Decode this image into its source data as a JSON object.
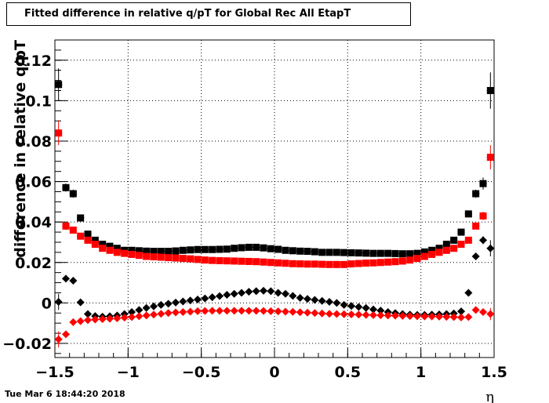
{
  "chart_data": {
    "type": "scatter",
    "title": "Fitted difference in relative q/pT  for Global Rec All EtapT",
    "xlabel": "η",
    "ylabel": "difference in relative q/pT",
    "xlim": [
      -1.5,
      1.5
    ],
    "ylim": [
      -0.027,
      0.13
    ],
    "grid": true,
    "x_ticks": [
      -1.5,
      -1,
      -0.5,
      0,
      0.5,
      1,
      1.5
    ],
    "x_tick_labels": [
      "−1.5",
      "−1",
      "−0.5",
      "0",
      "0.5",
      "1",
      "1.5"
    ],
    "y_ticks": [
      -0.02,
      0,
      0.02,
      0.04,
      0.06,
      0.08,
      0.1,
      0.12
    ],
    "y_tick_labels": [
      "−0.02",
      "0",
      "0.02",
      "0.04",
      "0.06",
      "0.08",
      "0.1",
      "0.12"
    ],
    "x": [
      -1.475,
      -1.425,
      -1.375,
      -1.325,
      -1.275,
      -1.225,
      -1.175,
      -1.125,
      -1.075,
      -1.025,
      -0.975,
      -0.925,
      -0.875,
      -0.825,
      -0.775,
      -0.725,
      -0.675,
      -0.625,
      -0.575,
      -0.525,
      -0.475,
      -0.425,
      -0.375,
      -0.325,
      -0.275,
      -0.225,
      -0.175,
      -0.125,
      -0.075,
      -0.025,
      0.025,
      0.075,
      0.125,
      0.175,
      0.225,
      0.275,
      0.325,
      0.375,
      0.425,
      0.475,
      0.525,
      0.575,
      0.625,
      0.675,
      0.725,
      0.775,
      0.825,
      0.875,
      0.925,
      0.975,
      1.025,
      1.075,
      1.125,
      1.175,
      1.225,
      1.275,
      1.325,
      1.375,
      1.425,
      1.475
    ],
    "series": [
      {
        "marker": "square",
        "color": "#000000",
        "values": [
          0.108,
          0.057,
          0.054,
          0.042,
          0.034,
          0.031,
          0.029,
          0.028,
          0.027,
          0.026,
          0.026,
          0.0258,
          0.0256,
          0.0255,
          0.0255,
          0.0255,
          0.0257,
          0.026,
          0.0262,
          0.0264,
          0.0264,
          0.0264,
          0.0265,
          0.0266,
          0.027,
          0.0273,
          0.0275,
          0.0275,
          0.0272,
          0.0268,
          0.0265,
          0.026,
          0.0258,
          0.0256,
          0.0255,
          0.0253,
          0.025,
          0.025,
          0.025,
          0.0249,
          0.0248,
          0.0247,
          0.0246,
          0.0245,
          0.0245,
          0.0245,
          0.0244,
          0.0243,
          0.0243,
          0.0245,
          0.0252,
          0.026,
          0.027,
          0.029,
          0.031,
          0.035,
          0.044,
          0.054,
          0.059,
          0.105
        ],
        "errors": [
          0.008,
          0.002,
          0.002,
          0.0015,
          0.001,
          0.001,
          0.001,
          0.001,
          0.001,
          0.001,
          0.001,
          0.001,
          0.001,
          0.001,
          0.001,
          0.001,
          0.001,
          0.001,
          0.001,
          0.001,
          0.001,
          0.001,
          0.001,
          0.001,
          0.001,
          0.001,
          0.001,
          0.001,
          0.001,
          0.001,
          0.001,
          0.001,
          0.001,
          0.001,
          0.001,
          0.001,
          0.001,
          0.001,
          0.001,
          0.001,
          0.001,
          0.001,
          0.001,
          0.001,
          0.001,
          0.001,
          0.001,
          0.001,
          0.001,
          0.001,
          0.001,
          0.001,
          0.001,
          0.001,
          0.001,
          0.001,
          0.0015,
          0.002,
          0.003,
          0.009
        ]
      },
      {
        "marker": "square",
        "color": "#ff0000",
        "values": [
          0.084,
          0.038,
          0.036,
          0.033,
          0.031,
          0.029,
          0.027,
          0.026,
          0.025,
          0.0245,
          0.024,
          0.0235,
          0.023,
          0.0228,
          0.0226,
          0.0224,
          0.0222,
          0.022,
          0.0218,
          0.0215,
          0.0212,
          0.021,
          0.0209,
          0.0208,
          0.0207,
          0.0206,
          0.0205,
          0.0204,
          0.0202,
          0.02,
          0.0198,
          0.0196,
          0.0194,
          0.0193,
          0.0192,
          0.0192,
          0.0191,
          0.019,
          0.019,
          0.019,
          0.0193,
          0.0195,
          0.0197,
          0.0198,
          0.02,
          0.0202,
          0.0204,
          0.0207,
          0.0212,
          0.022,
          0.023,
          0.024,
          0.025,
          0.026,
          0.027,
          0.029,
          0.031,
          0.038,
          0.043,
          0.072
        ],
        "errors": [
          0.006,
          0.002,
          0.0015,
          0.001,
          0.001,
          0.001,
          0.001,
          0.001,
          0.001,
          0.001,
          0.001,
          0.001,
          0.001,
          0.001,
          0.001,
          0.001,
          0.001,
          0.001,
          0.001,
          0.001,
          0.001,
          0.001,
          0.001,
          0.001,
          0.001,
          0.001,
          0.001,
          0.001,
          0.001,
          0.001,
          0.001,
          0.001,
          0.001,
          0.001,
          0.001,
          0.001,
          0.001,
          0.001,
          0.001,
          0.001,
          0.001,
          0.001,
          0.001,
          0.001,
          0.001,
          0.001,
          0.001,
          0.001,
          0.001,
          0.001,
          0.001,
          0.001,
          0.001,
          0.001,
          0.001,
          0.001,
          0.001,
          0.0015,
          0.002,
          0.006
        ]
      },
      {
        "marker": "diamond",
        "color": "#000000",
        "values": [
          0.0005,
          0.012,
          0.011,
          0.0003,
          -0.0055,
          -0.0065,
          -0.0068,
          -0.0066,
          -0.0062,
          -0.0055,
          -0.0045,
          -0.0035,
          -0.0025,
          -0.0017,
          -0.001,
          -0.0004,
          0.0002,
          0.0007,
          0.0012,
          0.0017,
          0.0022,
          0.0028,
          0.0034,
          0.004,
          0.0045,
          0.005,
          0.0055,
          0.0058,
          0.006,
          0.0058,
          0.005,
          0.0045,
          0.0035,
          0.0025,
          0.002,
          0.0015,
          0.001,
          0.0005,
          0,
          -0.001,
          -0.0015,
          -0.002,
          -0.0025,
          -0.0032,
          -0.0038,
          -0.0045,
          -0.005,
          -0.0055,
          -0.0058,
          -0.0059,
          -0.0059,
          -0.0058,
          -0.0057,
          -0.0055,
          -0.0052,
          -0.0042,
          0.005,
          0.023,
          0.031,
          0.027
        ],
        "errors": [
          0.004,
          0.001,
          0.001,
          0.001,
          0.0008,
          0.0008,
          0.0008,
          0.0008,
          0.0008,
          0.0008,
          0.0008,
          0.0008,
          0.0008,
          0.0008,
          0.0008,
          0.0008,
          0.0008,
          0.0008,
          0.0008,
          0.0008,
          0.0008,
          0.0008,
          0.0008,
          0.0008,
          0.0008,
          0.0008,
          0.0008,
          0.0008,
          0.0008,
          0.0008,
          0.0008,
          0.0008,
          0.0008,
          0.0008,
          0.0008,
          0.0008,
          0.0008,
          0.0008,
          0.0008,
          0.0008,
          0.0008,
          0.0008,
          0.0008,
          0.0008,
          0.0008,
          0.0008,
          0.0008,
          0.0008,
          0.0008,
          0.0008,
          0.0008,
          0.0008,
          0.0008,
          0.0008,
          0.0008,
          0.0008,
          0.001,
          0.0015,
          0.002,
          0.004
        ]
      },
      {
        "marker": "diamond",
        "color": "#ff0000",
        "values": [
          -0.018,
          -0.0155,
          -0.0095,
          -0.009,
          -0.0085,
          -0.0082,
          -0.008,
          -0.0078,
          -0.0076,
          -0.0073,
          -0.007,
          -0.0066,
          -0.0062,
          -0.0058,
          -0.0054,
          -0.005,
          -0.0047,
          -0.0045,
          -0.0043,
          -0.0041,
          -0.004,
          -0.0039,
          -0.0039,
          -0.0039,
          -0.0039,
          -0.0039,
          -0.0039,
          -0.0039,
          -0.004,
          -0.0041,
          -0.0042,
          -0.0043,
          -0.0044,
          -0.0046,
          -0.0048,
          -0.005,
          -0.0052,
          -0.0054,
          -0.0055,
          -0.0056,
          -0.0057,
          -0.0058,
          -0.0059,
          -0.006,
          -0.0061,
          -0.0062,
          -0.0063,
          -0.0064,
          -0.0065,
          -0.0066,
          -0.0067,
          -0.0067,
          -0.0068,
          -0.0069,
          -0.007,
          -0.0072,
          -0.007,
          -0.0035,
          -0.0045,
          -0.0055
        ],
        "errors": [
          0.004,
          0.0015,
          0.001,
          0.0008,
          0.0008,
          0.0008,
          0.0008,
          0.0008,
          0.0008,
          0.0008,
          0.0008,
          0.0008,
          0.0008,
          0.0008,
          0.0008,
          0.0008,
          0.0008,
          0.0008,
          0.0008,
          0.0008,
          0.0008,
          0.0008,
          0.0008,
          0.0008,
          0.0008,
          0.0008,
          0.0008,
          0.0008,
          0.0008,
          0.0008,
          0.0008,
          0.0008,
          0.0008,
          0.0008,
          0.0008,
          0.0008,
          0.0008,
          0.0008,
          0.0008,
          0.0008,
          0.0008,
          0.0008,
          0.0008,
          0.0008,
          0.0008,
          0.0008,
          0.0008,
          0.0008,
          0.0008,
          0.0008,
          0.0008,
          0.0008,
          0.0008,
          0.0008,
          0.0008,
          0.0008,
          0.0008,
          0.001,
          0.0015,
          0.003
        ]
      }
    ]
  },
  "footer": {
    "timestamp": "Tue Mar  6 18:44:20 2018"
  }
}
